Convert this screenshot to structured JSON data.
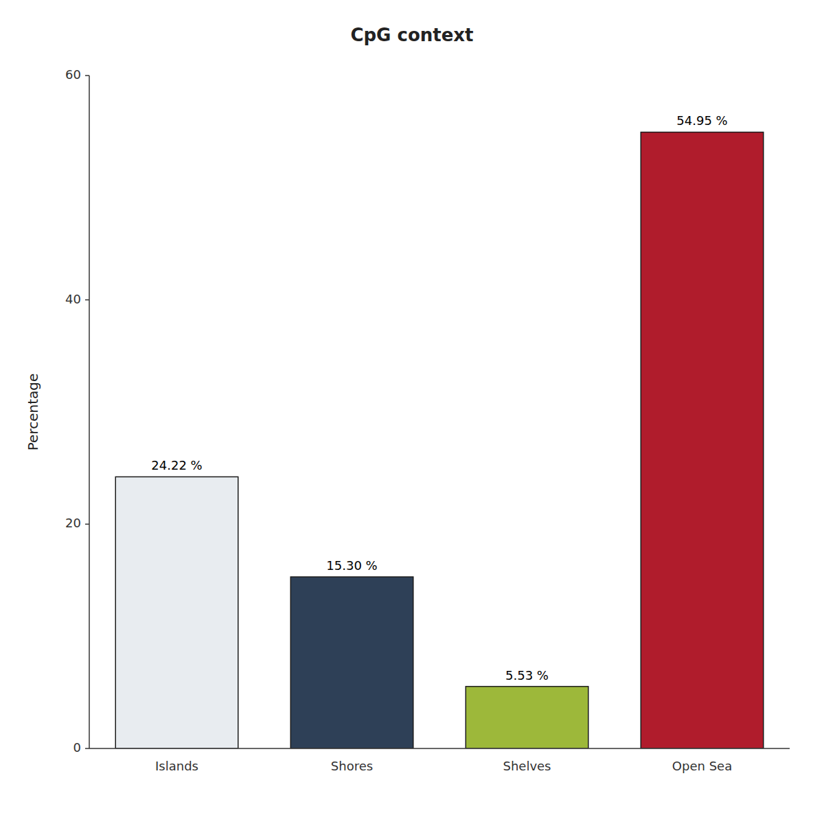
{
  "chart_data": {
    "type": "bar",
    "title": "CpG context",
    "ylabel": "Percentage",
    "categories": [
      "Islands",
      "Shores",
      "Shelves",
      "Open Sea"
    ],
    "values": [
      24.22,
      15.3,
      5.53,
      54.95
    ],
    "value_labels": [
      "24.22 %",
      "15.30 %",
      "5.53 %",
      "54.95 %"
    ],
    "data_labels": true,
    "colors": [
      "#e8ecf0",
      "#2e4057",
      "#9db83a",
      "#b01c2c"
    ],
    "ylim": [
      0,
      60
    ],
    "yticks": [
      0,
      20,
      40,
      60
    ],
    "grid": false
  }
}
